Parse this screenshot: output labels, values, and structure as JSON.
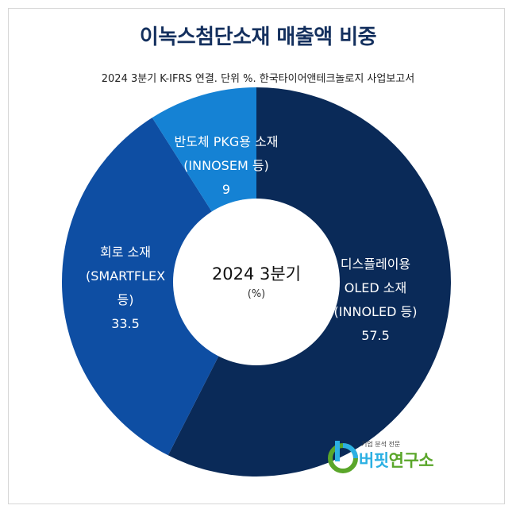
{
  "header": {
    "title": "이녹스첨단소재 매출액 비중",
    "subtitle": "2024 3분기 K-IFRS 연결. 단위 %. 한국타이어앤테크놀로지 사업보고서"
  },
  "chart_data": {
    "type": "pie",
    "donut": true,
    "center_label": "2024 3분기",
    "center_sublabel": "(%)",
    "slices": [
      {
        "label_lines": [
          "디스플레이용",
          "OLED 소재",
          "(INNOLED 등)"
        ],
        "value": 57.5,
        "value_text": "57.5",
        "color": "#0a2a58"
      },
      {
        "label_lines": [
          "회로 소재",
          "(SMARTFLEX",
          "등)"
        ],
        "value": 33.5,
        "value_text": "33.5",
        "color": "#0e4ea3"
      },
      {
        "label_lines": [
          "반도체 PKG용 소재",
          "(INNOSEM 등)"
        ],
        "value": 9,
        "value_text": "9",
        "color": "#1582d4"
      }
    ]
  },
  "brand": {
    "tagline": "기업 분석 전문",
    "name_part1": "버핏",
    "name_part2": "연구소",
    "colors": {
      "blue": "#2bb0e3",
      "green": "#5aa62a"
    }
  }
}
